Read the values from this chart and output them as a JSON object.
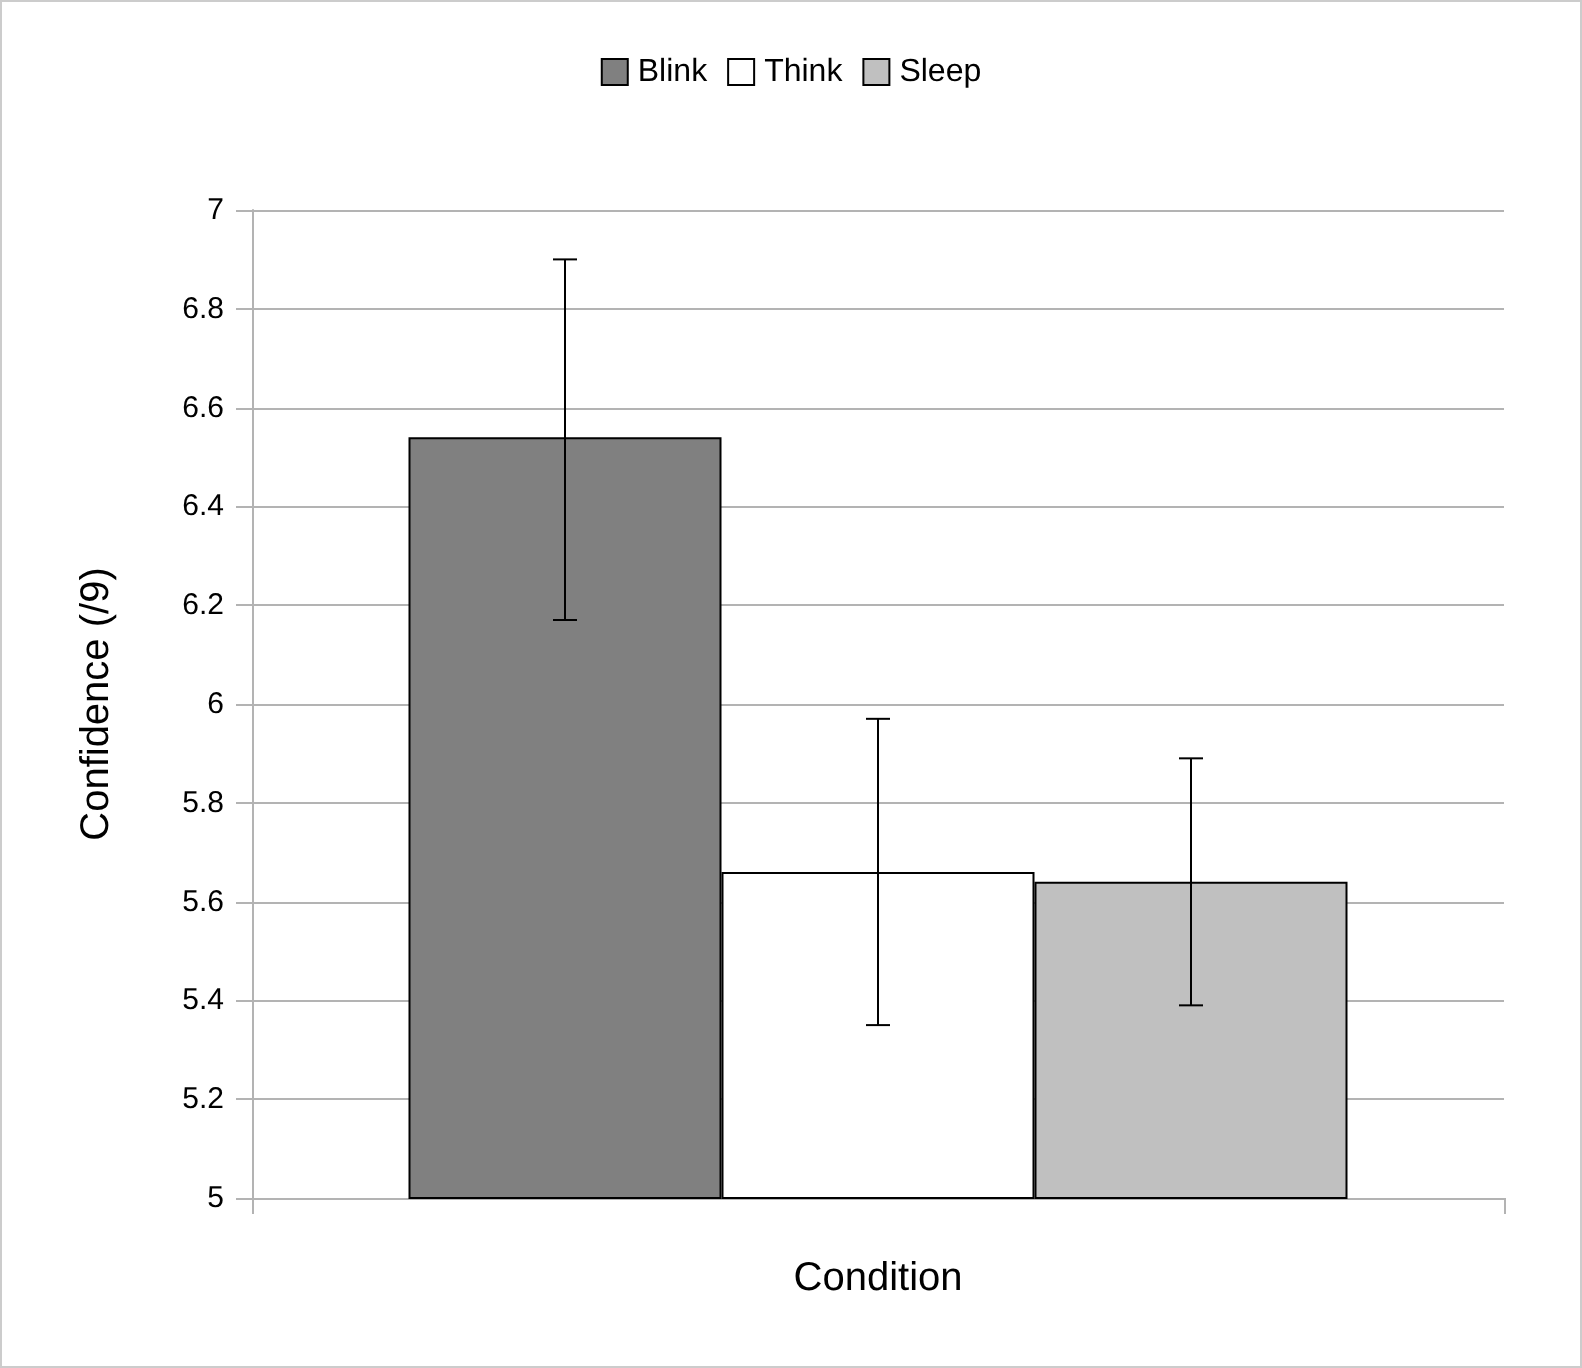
{
  "chart_data": {
    "type": "bar",
    "xlabel": "Condition",
    "ylabel": "Confidence (/9)",
    "categories": [
      null
    ],
    "series": [
      {
        "name": "Blink",
        "color": "#808080",
        "values": [
          6.54
        ],
        "errors": [
          [
            6.17,
            6.9
          ]
        ]
      },
      {
        "name": "Think",
        "color": "#ffffff",
        "values": [
          5.66
        ],
        "errors": [
          [
            5.35,
            5.97
          ]
        ]
      },
      {
        "name": "Sleep",
        "color": "#c0c0c0",
        "values": [
          5.64
        ],
        "errors": [
          [
            5.39,
            5.89
          ]
        ]
      }
    ],
    "ylim": [
      5,
      7
    ],
    "yticks": [
      5,
      5.2,
      5.4,
      5.6,
      5.8,
      6,
      6.2,
      6.4,
      6.6,
      6.8,
      7
    ],
    "grid": "y",
    "legend": "top"
  }
}
